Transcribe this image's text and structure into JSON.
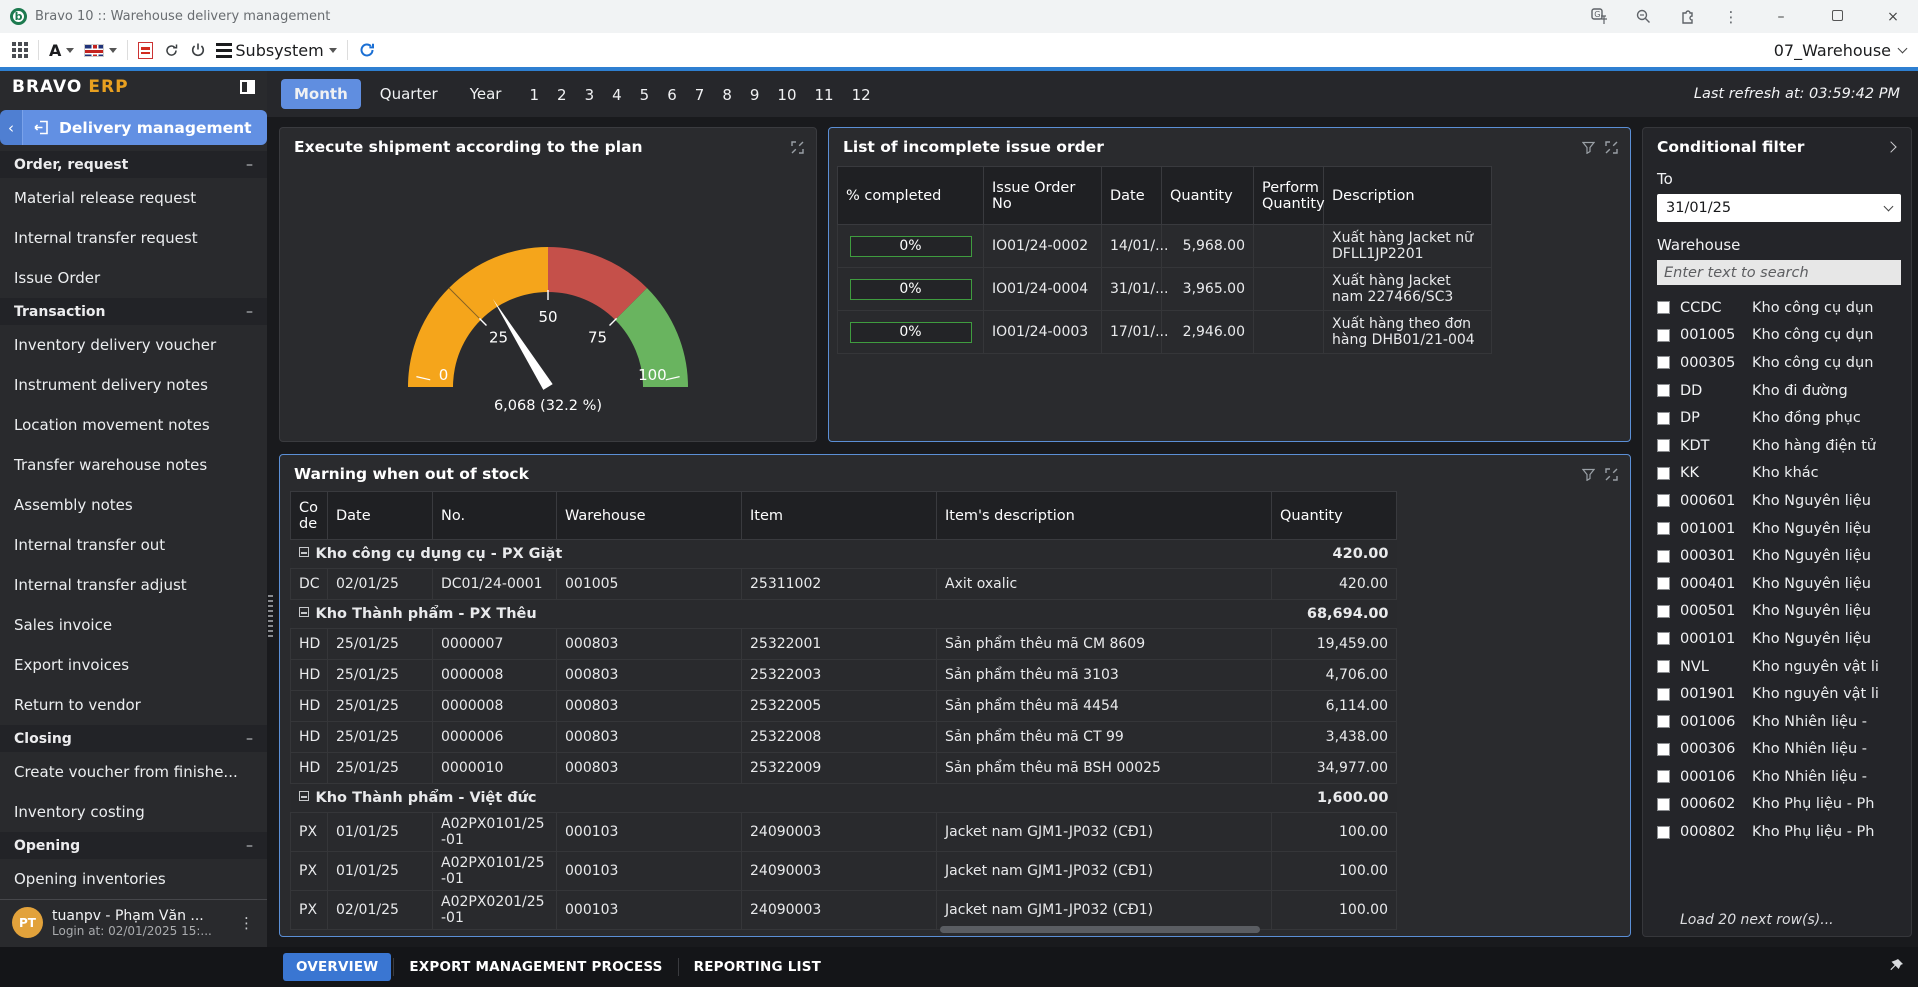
{
  "titlebar": {
    "title": "Bravo 10 :: Warehouse delivery management"
  },
  "toolbar": {
    "font_label": "A",
    "subsystem_label": "Subsystem",
    "profile": "07_Warehouse"
  },
  "sidebar": {
    "brand": "BRAVO",
    "brand_suffix": "ERP",
    "active_module": "Delivery management",
    "items": [
      {
        "type": "section",
        "label": "Order, request"
      },
      {
        "type": "item",
        "label": "Material release request"
      },
      {
        "type": "item",
        "label": "Internal transfer request"
      },
      {
        "type": "item",
        "label": "Issue Order"
      },
      {
        "type": "section",
        "label": "Transaction"
      },
      {
        "type": "item",
        "label": "Inventory delivery voucher"
      },
      {
        "type": "item",
        "label": "Instrument delivery notes"
      },
      {
        "type": "item",
        "label": "Location movement notes"
      },
      {
        "type": "item",
        "label": "Transfer warehouse notes"
      },
      {
        "type": "item",
        "label": "Assembly notes"
      },
      {
        "type": "item",
        "label": "Internal transfer out"
      },
      {
        "type": "item",
        "label": "Internal transfer adjust"
      },
      {
        "type": "item",
        "label": "Sales invoice"
      },
      {
        "type": "item",
        "label": "Export invoices"
      },
      {
        "type": "item",
        "label": "Return to vendor"
      },
      {
        "type": "section",
        "label": "Closing"
      },
      {
        "type": "item",
        "label": "Create voucher from finishe..."
      },
      {
        "type": "item",
        "label": "Inventory costing"
      },
      {
        "type": "section",
        "label": "Opening"
      },
      {
        "type": "item",
        "label": "Opening inventories"
      }
    ],
    "user": {
      "initials": "PT",
      "name": "tuanpv - Phạm Văn ...",
      "login": "Login at: 02/01/2025 15:..."
    }
  },
  "period_bar": {
    "tabs": [
      "Month",
      "Quarter",
      "Year"
    ],
    "active_tab": "Month",
    "months": [
      "1",
      "2",
      "3",
      "4",
      "5",
      "6",
      "7",
      "8",
      "9",
      "10",
      "11",
      "12"
    ],
    "last_refresh": "Last refresh at: 03:59:42 PM"
  },
  "chart_data": {
    "type": "gauge",
    "title": "Execute shipment according to the plan",
    "min": 0,
    "max": 100,
    "segments": [
      {
        "from": 0,
        "to": 50,
        "color": "#F5A51B"
      },
      {
        "from": 50,
        "to": 75,
        "color": "#C5504A"
      },
      {
        "from": 75,
        "to": 100,
        "color": "#69B45F"
      }
    ],
    "ticks": [
      0,
      25,
      50,
      75,
      100
    ],
    "value": 6068,
    "value_percent": 32.2,
    "value_label": "6,068 (32.2 %)"
  },
  "issue_panel": {
    "title": "List of incomplete issue order",
    "headers": [
      "% completed",
      "Issue Order No",
      "Date",
      "Quantity",
      "Perform Quantity",
      "Description"
    ],
    "rows": [
      {
        "completed": "0%",
        "no": "IO01/24-0002",
        "date": "14/01/...",
        "qty": "5,968.00",
        "perform": "",
        "desc": "Xuất hàng Jacket nữ DFLL1JP2201"
      },
      {
        "completed": "0%",
        "no": "IO01/24-0004",
        "date": "31/01/...",
        "qty": "3,965.00",
        "perform": "",
        "desc": "Xuất hàng Jacket nam 227466/SC3"
      },
      {
        "completed": "0%",
        "no": "IO01/24-0003",
        "date": "17/01/...",
        "qty": "2,946.00",
        "perform": "",
        "desc": "Xuất hàng theo đơn hàng DHB01/21-004"
      }
    ]
  },
  "warning_panel": {
    "title": "Warning when out of stock",
    "headers": [
      "Code",
      "Date",
      "No.",
      "Warehouse",
      "Item",
      "Item's description",
      "Quantity"
    ],
    "rows": [
      {
        "type": "group",
        "label": "Kho công cụ dụng cụ  - PX Giặt",
        "qty": "420.00"
      },
      {
        "type": "item",
        "code": "DC",
        "date": "02/01/25",
        "no": "DC01/24-0001",
        "wh": "001005",
        "item": "25311002",
        "desc": "Axit oxalic",
        "qty": "420.00"
      },
      {
        "type": "group",
        "label": "Kho Thành phẩm - PX Thêu",
        "qty": "68,694.00"
      },
      {
        "type": "item",
        "code": "HD",
        "date": "25/01/25",
        "no": "0000007",
        "wh": "000803",
        "item": "25322001",
        "desc": "Sản phẩm thêu mã CM 8609",
        "qty": "19,459.00"
      },
      {
        "type": "item",
        "code": "HD",
        "date": "25/01/25",
        "no": "0000008",
        "wh": "000803",
        "item": "25322003",
        "desc": "Sản phẩm thêu mã 3103",
        "qty": "4,706.00"
      },
      {
        "type": "item",
        "code": "HD",
        "date": "25/01/25",
        "no": "0000008",
        "wh": "000803",
        "item": "25322005",
        "desc": "Sản phẩm thêu mã 4454",
        "qty": "6,114.00"
      },
      {
        "type": "item",
        "code": "HD",
        "date": "25/01/25",
        "no": "0000006",
        "wh": "000803",
        "item": "25322008",
        "desc": "Sản phẩm thêu mã  CT 99",
        "qty": "3,438.00"
      },
      {
        "type": "item",
        "code": "HD",
        "date": "25/01/25",
        "no": "0000010",
        "wh": "000803",
        "item": "25322009",
        "desc": "Sản phẩm thêu mã BSH 00025",
        "qty": "34,977.00"
      },
      {
        "type": "group",
        "label": "Kho Thành phẩm - Việt đức",
        "qty": "1,600.00"
      },
      {
        "type": "item",
        "code": "PX",
        "date": "01/01/25",
        "no": "A02PX0101/25-01",
        "wh": "000103",
        "item": "24090003",
        "desc": "Jacket nam GJM1-JP032 (CĐ1)",
        "qty": "100.00"
      },
      {
        "type": "item",
        "code": "PX",
        "date": "01/01/25",
        "no": "A02PX0101/25-01",
        "wh": "000103",
        "item": "24090003",
        "desc": "Jacket nam GJM1-JP032 (CĐ1)",
        "qty": "100.00"
      },
      {
        "type": "item",
        "code": "PX",
        "date": "02/01/25",
        "no": "A02PX0201/25-01",
        "wh": "000103",
        "item": "24090003",
        "desc": "Jacket nam GJM1-JP032 (CĐ1)",
        "qty": "100.00"
      }
    ]
  },
  "filter_panel": {
    "title": "Conditional filter",
    "to_label": "To",
    "to_value": "31/01/25",
    "warehouse_label": "Warehouse",
    "search_placeholder": "Enter text to search",
    "options": [
      {
        "code": "CCDC",
        "name": "Kho công cụ dụn"
      },
      {
        "code": "001005",
        "name": "Kho công cụ dụn"
      },
      {
        "code": "000305",
        "name": "Kho công cụ dụn"
      },
      {
        "code": "DD",
        "name": "Kho đi đường"
      },
      {
        "code": "DP",
        "name": "Kho đồng phục"
      },
      {
        "code": "KDT",
        "name": "Kho hàng điện tử"
      },
      {
        "code": "KK",
        "name": "Kho khác"
      },
      {
        "code": "000601",
        "name": "Kho Nguyên liệu"
      },
      {
        "code": "001001",
        "name": "Kho Nguyên liệu"
      },
      {
        "code": "000301",
        "name": "Kho Nguyên liệu"
      },
      {
        "code": "000401",
        "name": "Kho Nguyên liệu"
      },
      {
        "code": "000501",
        "name": "Kho Nguyên liệu"
      },
      {
        "code": "000101",
        "name": "Kho Nguyên liệu"
      },
      {
        "code": "NVL",
        "name": "Kho nguyên vật li"
      },
      {
        "code": "001901",
        "name": "Kho nguyên vật li"
      },
      {
        "code": "001006",
        "name": "Kho Nhiên liệu -"
      },
      {
        "code": "000306",
        "name": "Kho Nhiên liệu -"
      },
      {
        "code": "000106",
        "name": "Kho Nhiên liệu -"
      },
      {
        "code": "000602",
        "name": "Kho Phụ liệu - Ph"
      },
      {
        "code": "000802",
        "name": "Kho Phụ liệu - Ph"
      }
    ],
    "load_more": "Load 20 next row(s)..."
  },
  "bottom_bar": {
    "tabs": [
      "OVERVIEW",
      "EXPORT MANAGEMENT PROCESS",
      "REPORTING LIST"
    ],
    "active": "OVERVIEW"
  }
}
